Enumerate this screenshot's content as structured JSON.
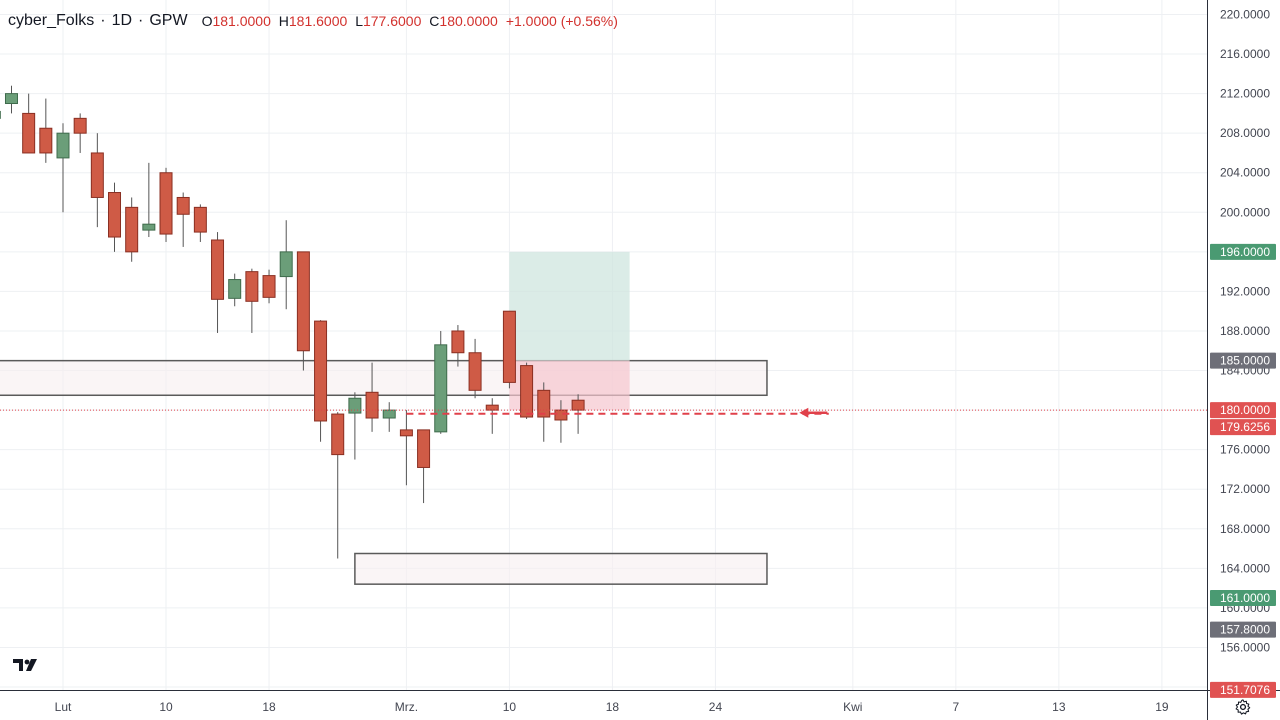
{
  "header": {
    "symbol": "cyber_Folks",
    "interval": "1D",
    "exchange": "GPW",
    "ohlc": {
      "open_label": "O",
      "open": "181.0000",
      "high_label": "H",
      "high": "181.6000",
      "low_label": "L",
      "low": "177.6000",
      "close_label": "C",
      "close": "180.0000"
    },
    "change": "+1.0000 (+0.56%)"
  },
  "colors": {
    "up": "#6b9e79",
    "down": "#cf5b46",
    "grid": "#eef0f3",
    "axis_text": "#434651",
    "green_label": "#4a9a72",
    "red_label": "#e05252",
    "gray_label": "#6e6f78",
    "zone_fill": "#f7eef0",
    "zone_stroke": "#5a5a5a",
    "arrow": "#e0404a"
  },
  "chart_data": {
    "type": "candlestick",
    "ylim": [
      152,
      222
    ],
    "y_ticks": [
      "156.0000",
      "160.0000",
      "164.0000",
      "168.0000",
      "172.0000",
      "176.0000",
      "184.0000",
      "188.0000",
      "192.0000",
      "200.0000",
      "204.0000",
      "208.0000",
      "212.0000",
      "216.0000",
      "220.0000"
    ],
    "x_ticks": [
      {
        "label": "Lut",
        "day": 0
      },
      {
        "label": "10",
        "day": 6
      },
      {
        "label": "18",
        "day": 12
      },
      {
        "label": "Mrz.",
        "day": 20
      },
      {
        "label": "10",
        "day": 26
      },
      {
        "label": "18",
        "day": 32
      },
      {
        "label": "24",
        "day": 38
      },
      {
        "label": "Kwi",
        "day": 46
      },
      {
        "label": "7",
        "day": 52
      },
      {
        "label": "13",
        "day": 58
      },
      {
        "label": "19",
        "day": 64
      }
    ],
    "candles": [
      {
        "day": -4,
        "o": 209.5,
        "h": 212.0,
        "l": 207.8,
        "c": 210.2
      },
      {
        "day": -3,
        "o": 211.0,
        "h": 212.8,
        "l": 210.0,
        "c": 212.0
      },
      {
        "day": -2,
        "o": 210.0,
        "h": 212.0,
        "l": 206.0,
        "c": 206.0
      },
      {
        "day": -1,
        "o": 208.5,
        "h": 211.5,
        "l": 205.0,
        "c": 206.0
      },
      {
        "day": 0,
        "o": 205.5,
        "h": 209.0,
        "l": 200.0,
        "c": 208.0
      },
      {
        "day": 1,
        "o": 209.5,
        "h": 210.0,
        "l": 206.0,
        "c": 208.0
      },
      {
        "day": 2,
        "o": 206.0,
        "h": 208.0,
        "l": 198.5,
        "c": 201.5
      },
      {
        "day": 3,
        "o": 202.0,
        "h": 203.0,
        "l": 196.0,
        "c": 197.5
      },
      {
        "day": 4,
        "o": 200.5,
        "h": 201.5,
        "l": 195.0,
        "c": 196.0
      },
      {
        "day": 5,
        "o": 198.2,
        "h": 205.0,
        "l": 197.5,
        "c": 198.8
      },
      {
        "day": 6,
        "o": 204.0,
        "h": 204.5,
        "l": 197.0,
        "c": 197.8
      },
      {
        "day": 7,
        "o": 201.5,
        "h": 202.0,
        "l": 196.5,
        "c": 199.8
      },
      {
        "day": 8,
        "o": 200.5,
        "h": 200.8,
        "l": 197.0,
        "c": 198.0
      },
      {
        "day": 9,
        "o": 197.2,
        "h": 198.0,
        "l": 187.8,
        "c": 191.2
      },
      {
        "day": 10,
        "o": 191.3,
        "h": 193.8,
        "l": 190.5,
        "c": 193.2
      },
      {
        "day": 11,
        "o": 194.0,
        "h": 194.3,
        "l": 187.8,
        "c": 191.0
      },
      {
        "day": 12,
        "o": 193.6,
        "h": 194.2,
        "l": 190.8,
        "c": 191.4
      },
      {
        "day": 13,
        "o": 193.5,
        "h": 199.2,
        "l": 190.2,
        "c": 196.0
      },
      {
        "day": 14,
        "o": 196.0,
        "h": 196.0,
        "l": 184.0,
        "c": 186.0
      },
      {
        "day": 15,
        "o": 189.0,
        "h": 189.1,
        "l": 176.8,
        "c": 178.9
      },
      {
        "day": 16,
        "o": 179.6,
        "h": 179.8,
        "l": 165.0,
        "c": 175.5
      },
      {
        "day": 17,
        "o": 179.7,
        "h": 181.8,
        "l": 175.0,
        "c": 181.2
      },
      {
        "day": 18,
        "o": 181.8,
        "h": 184.8,
        "l": 177.8,
        "c": 179.2
      },
      {
        "day": 19,
        "o": 179.2,
        "h": 180.8,
        "l": 177.8,
        "c": 180.0
      },
      {
        "day": 20,
        "o": 178.0,
        "h": 180.0,
        "l": 172.4,
        "c": 177.4
      },
      {
        "day": 21,
        "o": 178.0,
        "h": 178.0,
        "l": 170.6,
        "c": 174.2
      },
      {
        "day": 22,
        "o": 177.8,
        "h": 188.0,
        "l": 177.6,
        "c": 186.6
      },
      {
        "day": 23,
        "o": 188.0,
        "h": 188.6,
        "l": 184.4,
        "c": 185.8
      },
      {
        "day": 24,
        "o": 185.8,
        "h": 187.2,
        "l": 181.2,
        "c": 182.0
      },
      {
        "day": 25,
        "o": 180.5,
        "h": 181.2,
        "l": 177.6,
        "c": 180.0
      },
      {
        "day": 26,
        "o": 190.0,
        "h": 190.0,
        "l": 182.2,
        "c": 182.8
      },
      {
        "day": 27,
        "o": 184.5,
        "h": 184.8,
        "l": 179.1,
        "c": 179.3
      },
      {
        "day": 28,
        "o": 182.0,
        "h": 182.8,
        "l": 176.8,
        "c": 179.3
      },
      {
        "day": 29,
        "o": 180.0,
        "h": 181.0,
        "l": 176.7,
        "c": 179.0
      },
      {
        "day": 30,
        "o": 181.0,
        "h": 181.6,
        "l": 177.6,
        "c": 180.0
      }
    ],
    "zones": [
      {
        "from_day": -4,
        "to_day": 41,
        "top": 185.0,
        "bottom": 181.5
      },
      {
        "from_day": 17,
        "to_day": 41,
        "top": 165.5,
        "bottom": 162.4
      }
    ],
    "position": {
      "from_day": 26,
      "to_day": 33,
      "entry": 180.0,
      "target": 196.0,
      "stop": 185.0
    },
    "dashed_level": 179.6256,
    "arrow_day": 43,
    "price_labels": [
      {
        "text": "196.0000",
        "value": 196.0,
        "color": "green"
      },
      {
        "text": "185.0000",
        "value": 185.0,
        "color": "gray"
      },
      {
        "text": "180.0000",
        "value": 180.0,
        "color": "red"
      },
      {
        "text": "179.6256",
        "value": 179.6256,
        "color": "red"
      },
      {
        "text": "161.0000",
        "value": 161.0,
        "color": "green"
      },
      {
        "text": "157.8000",
        "value": 157.8,
        "color": "gray"
      },
      {
        "text": "151.7076",
        "value": 151.7076,
        "color": "red"
      }
    ]
  }
}
